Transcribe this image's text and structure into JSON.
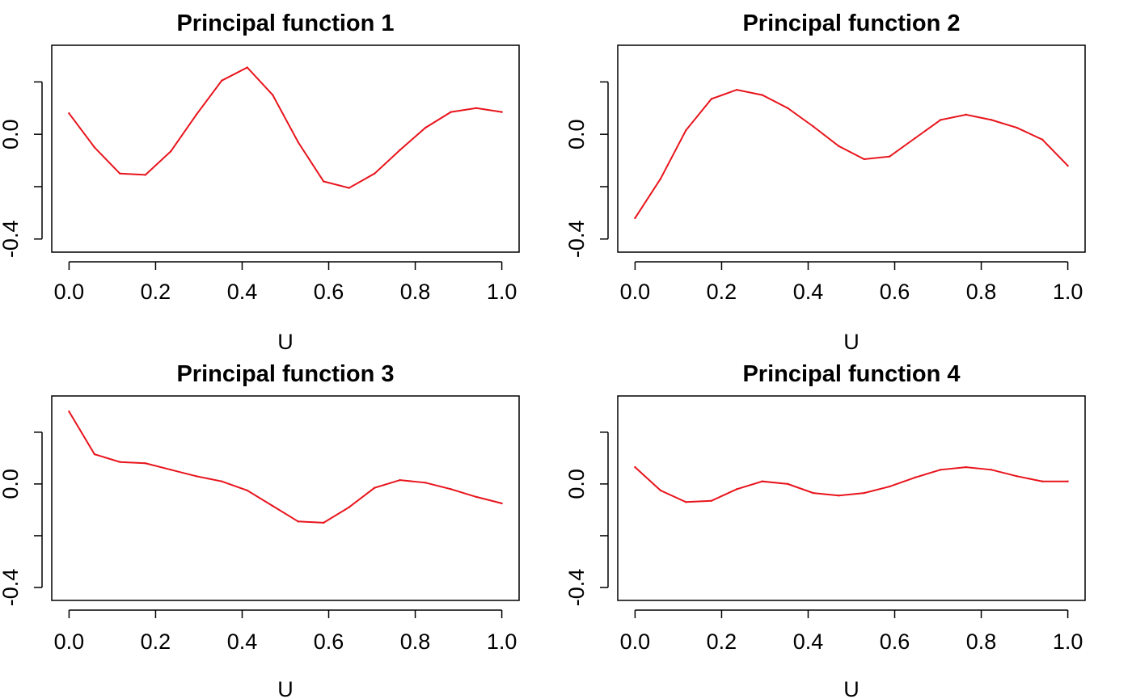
{
  "colors": {
    "line": "#e8141c",
    "axis": "#000000"
  },
  "chart_data": [
    {
      "type": "line",
      "title": "Principal function  1",
      "xlabel": "U",
      "ylabel": "",
      "xticks": [
        "0.0",
        "0.2",
        "0.4",
        "0.6",
        "0.8",
        "1.0"
      ],
      "yticks": [
        "-0.4",
        "0.0"
      ],
      "xlim": [
        -0.04,
        1.04
      ],
      "ylim": [
        -0.45,
        0.34
      ],
      "grid": false,
      "series": [
        {
          "x": [
            0.0,
            0.0588,
            0.1176,
            0.1765,
            0.2353,
            0.2941,
            0.3529,
            0.4118,
            0.4706,
            0.5294,
            0.5882,
            0.6471,
            0.7059,
            0.7647,
            0.8235,
            0.8824,
            0.9412,
            1.0
          ],
          "values": [
            0.08,
            -0.05,
            -0.15,
            -0.155,
            -0.065,
            0.075,
            0.205,
            0.255,
            0.15,
            -0.03,
            -0.18,
            -0.205,
            -0.15,
            -0.06,
            0.025,
            0.085,
            0.1,
            0.085
          ]
        }
      ]
    },
    {
      "type": "line",
      "title": "Principal function  2",
      "xlabel": "U",
      "ylabel": "",
      "xticks": [
        "0.0",
        "0.2",
        "0.4",
        "0.6",
        "0.8",
        "1.0"
      ],
      "yticks": [
        "-0.4",
        "0.0"
      ],
      "xlim": [
        -0.04,
        1.04
      ],
      "ylim": [
        -0.45,
        0.34
      ],
      "grid": false,
      "series": [
        {
          "x": [
            0.0,
            0.0588,
            0.1176,
            0.1765,
            0.2353,
            0.2941,
            0.3529,
            0.4118,
            0.4706,
            0.5294,
            0.5882,
            0.6471,
            0.7059,
            0.7647,
            0.8235,
            0.8824,
            0.9412,
            1.0
          ],
          "values": [
            -0.32,
            -0.17,
            0.015,
            0.135,
            0.17,
            0.15,
            0.1,
            0.03,
            -0.045,
            -0.095,
            -0.085,
            -0.015,
            0.055,
            0.075,
            0.055,
            0.025,
            -0.02,
            -0.12
          ]
        }
      ]
    },
    {
      "type": "line",
      "title": "Principal function  3",
      "xlabel": "U",
      "ylabel": "",
      "xticks": [
        "0.0",
        "0.2",
        "0.4",
        "0.6",
        "0.8",
        "1.0"
      ],
      "yticks": [
        "-0.4",
        "0.0"
      ],
      "xlim": [
        -0.04,
        1.04
      ],
      "ylim": [
        -0.45,
        0.34
      ],
      "grid": false,
      "series": [
        {
          "x": [
            0.0,
            0.0588,
            0.1176,
            0.1765,
            0.2353,
            0.2941,
            0.3529,
            0.4118,
            0.4706,
            0.5294,
            0.5882,
            0.6471,
            0.7059,
            0.7647,
            0.8235,
            0.8824,
            0.9412,
            1.0
          ],
          "values": [
            0.28,
            0.115,
            0.085,
            0.08,
            0.055,
            0.03,
            0.01,
            -0.025,
            -0.085,
            -0.145,
            -0.15,
            -0.09,
            -0.015,
            0.015,
            0.005,
            -0.02,
            -0.05,
            -0.075
          ]
        }
      ]
    },
    {
      "type": "line",
      "title": "Principal function  4",
      "xlabel": "U",
      "ylabel": "",
      "xticks": [
        "0.0",
        "0.2",
        "0.4",
        "0.6",
        "0.8",
        "1.0"
      ],
      "yticks": [
        "-0.4",
        "0.0"
      ],
      "xlim": [
        -0.04,
        1.04
      ],
      "ylim": [
        -0.45,
        0.34
      ],
      "grid": false,
      "series": [
        {
          "x": [
            0.0,
            0.0588,
            0.1176,
            0.1765,
            0.2353,
            0.2941,
            0.3529,
            0.4118,
            0.4706,
            0.5294,
            0.5882,
            0.6471,
            0.7059,
            0.7647,
            0.8235,
            0.8824,
            0.9412,
            1.0
          ],
          "values": [
            0.065,
            -0.025,
            -0.07,
            -0.065,
            -0.02,
            0.01,
            0.0,
            -0.035,
            -0.045,
            -0.035,
            -0.01,
            0.025,
            0.055,
            0.065,
            0.055,
            0.03,
            0.01,
            0.01
          ]
        }
      ]
    }
  ]
}
